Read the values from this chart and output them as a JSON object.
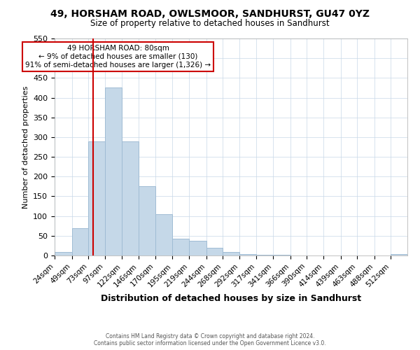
{
  "title": "49, HORSHAM ROAD, OWLSMOOR, SANDHURST, GU47 0YZ",
  "subtitle": "Size of property relative to detached houses in Sandhurst",
  "xlabel": "Distribution of detached houses by size in Sandhurst",
  "ylabel": "Number of detached properties",
  "bar_labels": [
    "24sqm",
    "49sqm",
    "73sqm",
    "97sqm",
    "122sqm",
    "146sqm",
    "170sqm",
    "195sqm",
    "219sqm",
    "244sqm",
    "268sqm",
    "292sqm",
    "317sqm",
    "341sqm",
    "366sqm",
    "390sqm",
    "414sqm",
    "439sqm",
    "463sqm",
    "488sqm",
    "512sqm"
  ],
  "bar_heights": [
    8,
    70,
    290,
    425,
    290,
    175,
    105,
    43,
    38,
    20,
    8,
    4,
    1,
    1,
    0,
    0,
    0,
    0,
    0,
    0,
    3
  ],
  "bar_color": "#c5d8e8",
  "bar_edgecolor": "#a0bcd4",
  "ylim": [
    0,
    550
  ],
  "yticks": [
    0,
    50,
    100,
    150,
    200,
    250,
    300,
    350,
    400,
    450,
    500,
    550
  ],
  "label_vals": [
    24,
    49,
    73,
    97,
    122,
    146,
    170,
    195,
    219,
    244,
    268,
    292,
    317,
    341,
    366,
    390,
    414,
    439,
    463,
    488,
    512
  ],
  "property_line_x": 80,
  "property_line_color": "#cc0000",
  "annotation_title": "49 HORSHAM ROAD: 80sqm",
  "annotation_line1": "← 9% of detached houses are smaller (130)",
  "annotation_line2": "91% of semi-detached houses are larger (1,326) →",
  "annotation_box_color": "#cc0000",
  "footer1": "Contains HM Land Registry data © Crown copyright and database right 2024.",
  "footer2": "Contains public sector information licensed under the Open Government Licence v3.0.",
  "bg_color": "#ffffff",
  "grid_color": "#c8d8e8"
}
